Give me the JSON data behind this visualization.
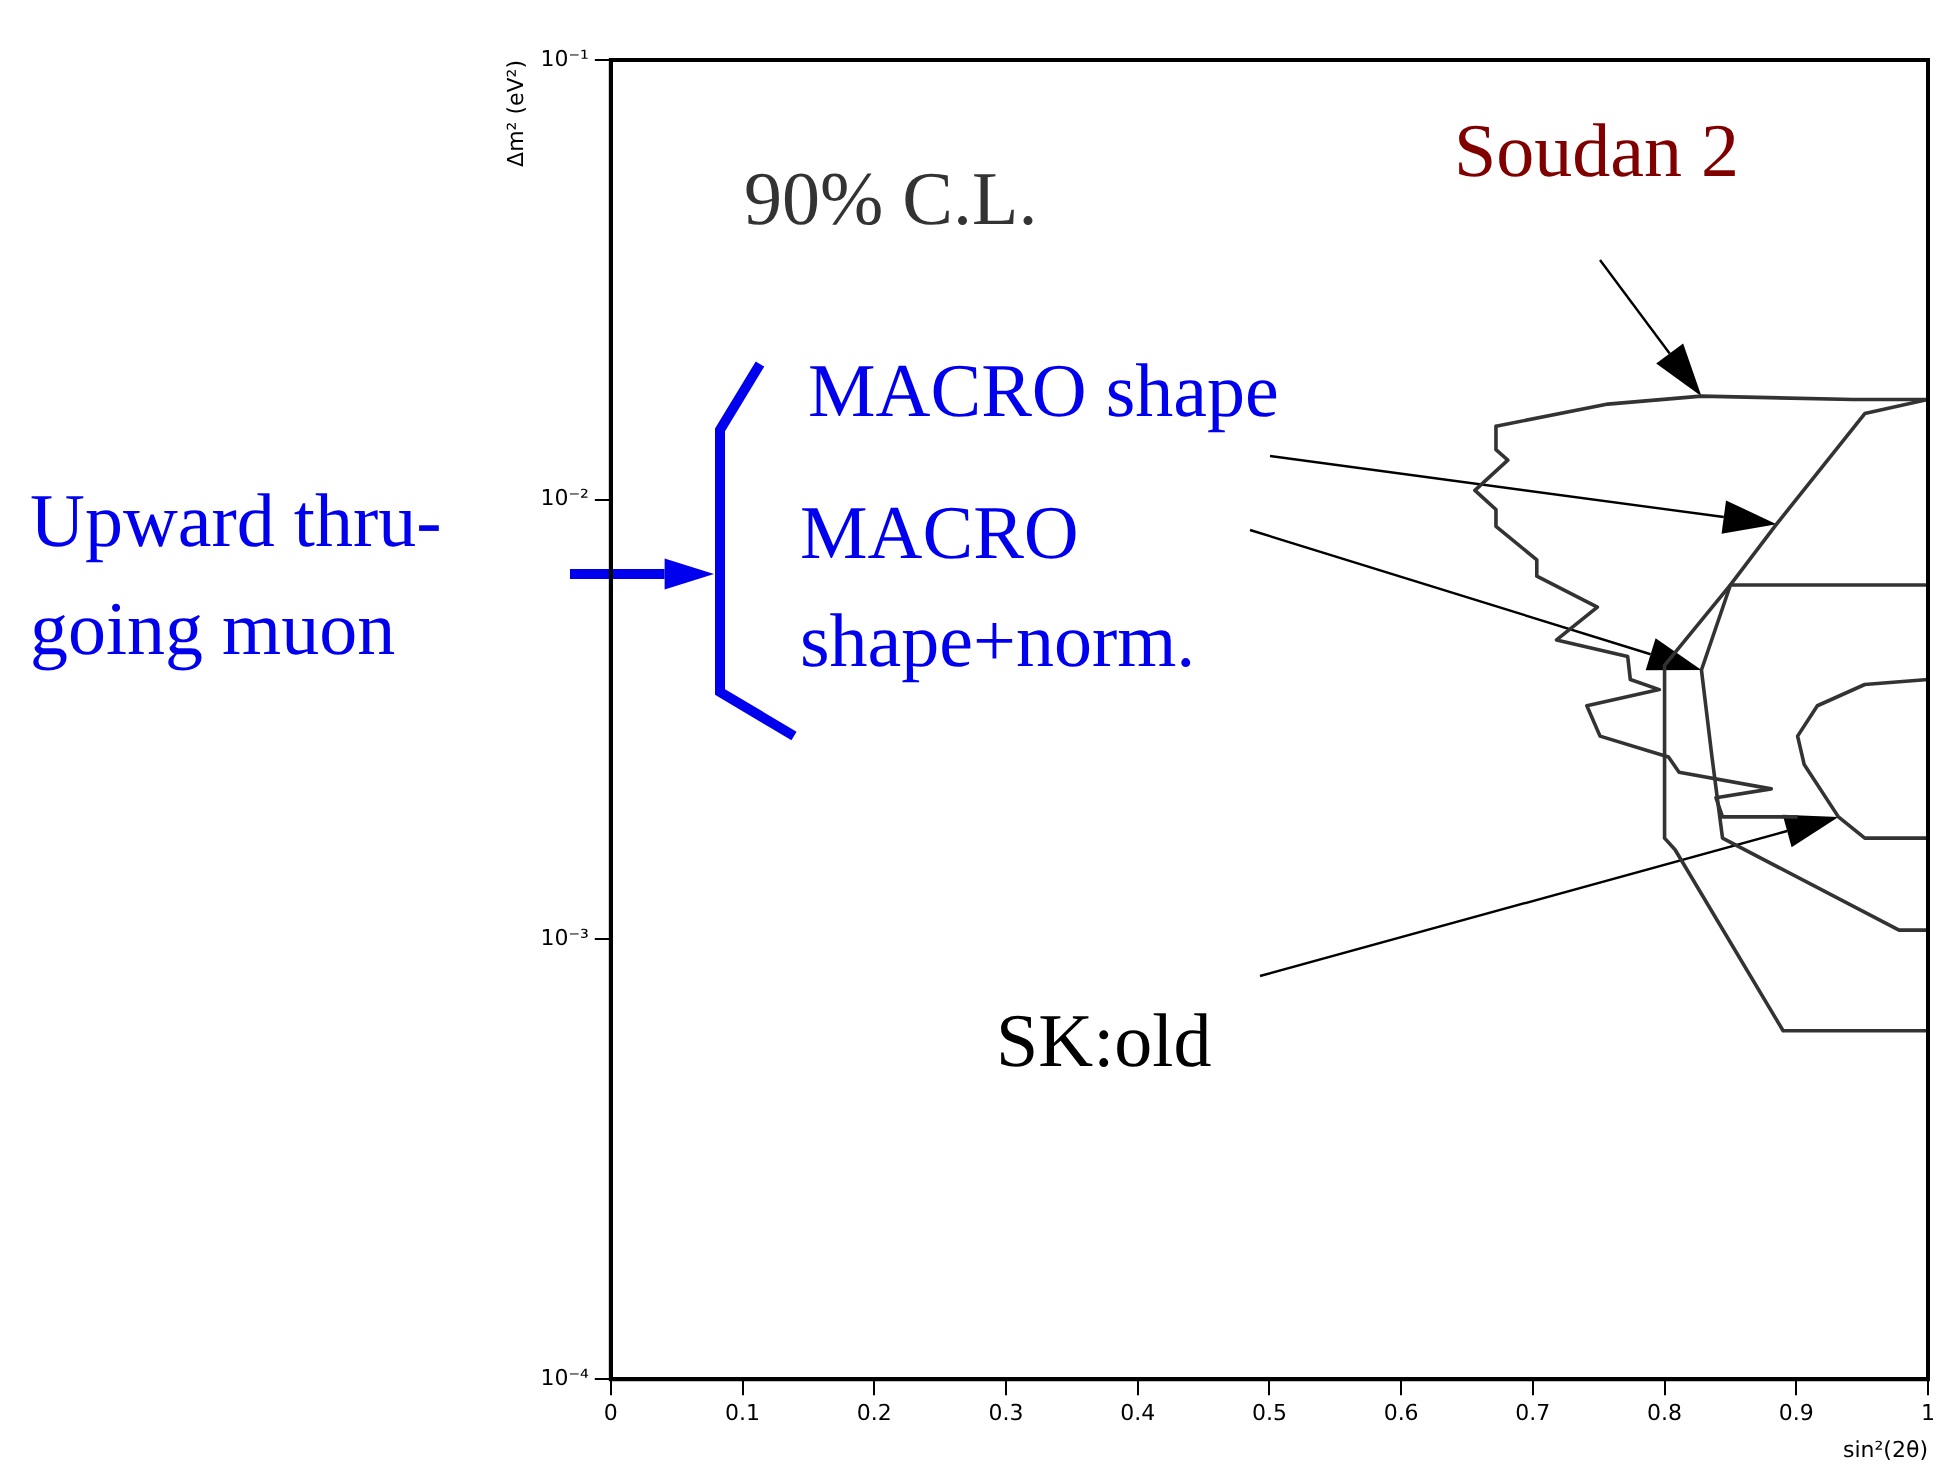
{
  "chart_data": {
    "type": "line",
    "xlabel": "sin²(2θ)",
    "ylabel": "Δm² (eV²)",
    "log": "y",
    "xlim": [
      0,
      1
    ],
    "xticks": [
      0,
      0.1,
      0.2,
      0.3,
      0.4,
      0.5,
      0.6,
      0.7,
      0.8,
      0.9,
      1
    ],
    "ylim": [
      0.0001,
      0.1
    ],
    "yticks": [
      {
        "value": 0.0001,
        "label": "10⁻⁴"
      },
      {
        "value": 0.001,
        "label": "10⁻³"
      },
      {
        "value": 0.01,
        "label": "10⁻²"
      },
      {
        "value": 0.1,
        "label": "10⁻¹"
      }
    ],
    "series": [
      {
        "type": "line",
        "color": "#333333",
        "x": [
          1,
          0.943,
          0.828,
          0.757,
          0.672,
          0.672,
          0.681,
          0.656,
          0.672,
          0.672,
          0.703,
          0.703,
          0.749,
          0.718,
          0.772,
          0.774,
          0.796,
          0.741,
          0.751,
          0.803,
          0.811,
          0.881,
          0.839,
          0.844,
          0.901
        ],
        "values": [
          0.0169,
          0.0169,
          0.0172,
          0.0165,
          0.0147,
          0.013,
          0.0123,
          0.0105,
          0.0095,
          0.0087,
          0.0073,
          0.0067,
          0.0057,
          0.0048,
          0.0044,
          0.0039,
          0.0037,
          0.0034,
          0.0029,
          0.0026,
          0.0024,
          0.0022,
          0.0021,
          0.0019,
          0.0019
        ]
      },
      {
        "type": "line",
        "color": "#333333",
        "x": [
          1,
          0.952,
          0.885,
          0.85,
          0.8,
          0.8,
          0.808,
          0.89,
          1
        ],
        "values": [
          0.0169,
          0.0157,
          0.0088,
          0.0064,
          0.0042,
          0.0017,
          0.0016,
          0.00062,
          0.00062
        ]
      },
      {
        "type": "line",
        "color": "#333333",
        "x": [
          1,
          0.85,
          0.828,
          0.836,
          0.844,
          0.978,
          1
        ],
        "values": [
          0.0064,
          0.0064,
          0.0041,
          0.0026,
          0.0017,
          0.00105,
          0.00105
        ]
      },
      {
        "type": "line",
        "color": "#333333",
        "x": [
          1,
          0.952,
          0.916,
          0.901,
          0.906,
          0.932,
          0.952,
          0.978,
          1
        ],
        "values": [
          0.0039,
          0.0038,
          0.0034,
          0.0029,
          0.0025,
          0.0019,
          0.0017,
          0.0017,
          0.0017
        ]
      }
    ],
    "annotations": [
      "90% C.L.",
      "Soudan 2",
      "MACRO shape",
      "MACRO shape+norm.",
      "SK:old",
      "Upward thru-going muon"
    ]
  }
}
